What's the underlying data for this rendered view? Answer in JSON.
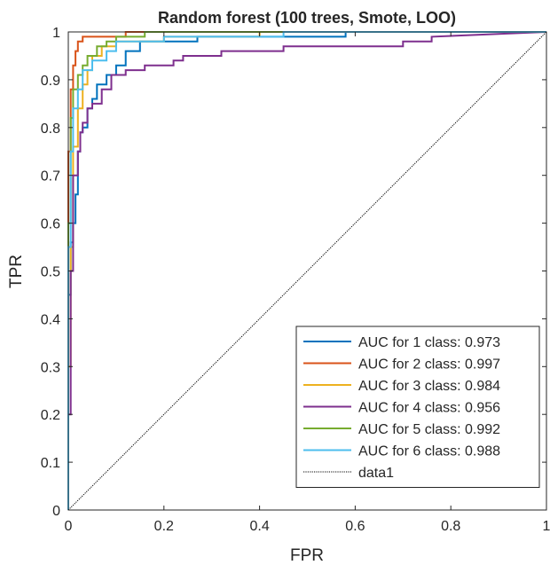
{
  "chart_data": {
    "type": "line",
    "title": "Random forest (100 trees, Smote, LOO)",
    "xlabel": "FPR",
    "ylabel": "TPR",
    "xlim": [
      0,
      1
    ],
    "ylim": [
      0,
      1
    ],
    "xticks": [
      "0",
      "0.2",
      "0.4",
      "0.6",
      "0.8",
      "1"
    ],
    "yticks": [
      "0",
      "0.1",
      "0.2",
      "0.3",
      "0.4",
      "0.5",
      "0.6",
      "0.7",
      "0.8",
      "0.9",
      "1"
    ],
    "grid": false,
    "legend_position": "bottom-right",
    "series": [
      {
        "name": "AUC for 1 class: 0.973",
        "color": "#0072BD",
        "x": [
          0,
          0,
          0.005,
          0.005,
          0.01,
          0.01,
          0.015,
          0.015,
          0.02,
          0.02,
          0.025,
          0.025,
          0.03,
          0.03,
          0.04,
          0.04,
          0.05,
          0.05,
          0.06,
          0.06,
          0.08,
          0.08,
          0.1,
          0.1,
          0.12,
          0.12,
          0.15,
          0.15,
          0.27,
          0.27,
          0.58,
          0.58,
          1
        ],
        "y": [
          0,
          0.45,
          0.45,
          0.56,
          0.56,
          0.6,
          0.6,
          0.66,
          0.66,
          0.75,
          0.75,
          0.79,
          0.79,
          0.8,
          0.8,
          0.84,
          0.84,
          0.86,
          0.86,
          0.89,
          0.89,
          0.91,
          0.91,
          0.93,
          0.93,
          0.96,
          0.96,
          0.98,
          0.98,
          0.99,
          0.99,
          1,
          1
        ]
      },
      {
        "name": "AUC for 2 class: 0.997",
        "color": "#D95319",
        "x": [
          0,
          0,
          0.005,
          0.005,
          0.01,
          0.01,
          0.015,
          0.015,
          0.02,
          0.02,
          0.03,
          0.03,
          0.12,
          0.12,
          1
        ],
        "y": [
          0,
          0.75,
          0.75,
          0.88,
          0.88,
          0.93,
          0.93,
          0.96,
          0.96,
          0.98,
          0.98,
          0.99,
          0.99,
          1,
          1
        ]
      },
      {
        "name": "AUC for 3 class: 0.984",
        "color": "#EDB120",
        "x": [
          0,
          0,
          0.005,
          0.005,
          0.01,
          0.01,
          0.02,
          0.02,
          0.03,
          0.03,
          0.04,
          0.04,
          0.05,
          0.05,
          0.07,
          0.07,
          0.1,
          0.1,
          0.2,
          0.2,
          0.4,
          0.4,
          1
        ],
        "y": [
          0,
          0.3,
          0.3,
          0.55,
          0.55,
          0.76,
          0.76,
          0.84,
          0.84,
          0.89,
          0.89,
          0.92,
          0.92,
          0.95,
          0.95,
          0.97,
          0.97,
          0.98,
          0.98,
          0.99,
          0.99,
          1,
          1
        ]
      },
      {
        "name": "AUC for 4 class: 0.956",
        "color": "#7E2F8E",
        "x": [
          0,
          0,
          0.005,
          0.005,
          0.01,
          0.01,
          0.02,
          0.02,
          0.025,
          0.025,
          0.03,
          0.03,
          0.04,
          0.04,
          0.05,
          0.05,
          0.07,
          0.07,
          0.09,
          0.09,
          0.12,
          0.12,
          0.16,
          0.16,
          0.22,
          0.22,
          0.24,
          0.24,
          0.32,
          0.32,
          0.45,
          0.45,
          0.7,
          0.7,
          0.76,
          0.76,
          1
        ],
        "y": [
          0,
          0.2,
          0.2,
          0.5,
          0.5,
          0.7,
          0.7,
          0.75,
          0.75,
          0.79,
          0.79,
          0.81,
          0.81,
          0.84,
          0.84,
          0.85,
          0.85,
          0.88,
          0.88,
          0.91,
          0.91,
          0.92,
          0.92,
          0.93,
          0.93,
          0.94,
          0.94,
          0.95,
          0.95,
          0.96,
          0.96,
          0.97,
          0.97,
          0.98,
          0.98,
          0.99,
          1
        ]
      },
      {
        "name": "AUC for 5 class: 0.992",
        "color": "#77AC30",
        "x": [
          0,
          0,
          0.005,
          0.005,
          0.01,
          0.01,
          0.02,
          0.02,
          0.03,
          0.03,
          0.04,
          0.04,
          0.06,
          0.06,
          0.08,
          0.08,
          0.1,
          0.1,
          0.16,
          0.16,
          0.4,
          0.4,
          1
        ],
        "y": [
          0,
          0.6,
          0.6,
          0.82,
          0.82,
          0.88,
          0.88,
          0.91,
          0.91,
          0.93,
          0.93,
          0.95,
          0.95,
          0.97,
          0.97,
          0.98,
          0.98,
          0.99,
          0.99,
          1,
          1,
          1,
          1
        ]
      },
      {
        "name": "AUC for 6 class: 0.988",
        "color": "#4DBEEE",
        "x": [
          0,
          0,
          0.005,
          0.005,
          0.01,
          0.01,
          0.02,
          0.02,
          0.03,
          0.03,
          0.05,
          0.05,
          0.08,
          0.08,
          0.1,
          0.1,
          0.2,
          0.2,
          0.45,
          0.45,
          1
        ],
        "y": [
          0,
          0.55,
          0.55,
          0.75,
          0.75,
          0.84,
          0.84,
          0.88,
          0.88,
          0.92,
          0.92,
          0.94,
          0.94,
          0.96,
          0.96,
          0.98,
          0.98,
          0.99,
          0.99,
          1,
          1
        ]
      },
      {
        "name": "data1",
        "color": "#000000",
        "dotted": true,
        "x": [
          0,
          1
        ],
        "y": [
          0,
          1
        ]
      }
    ]
  }
}
